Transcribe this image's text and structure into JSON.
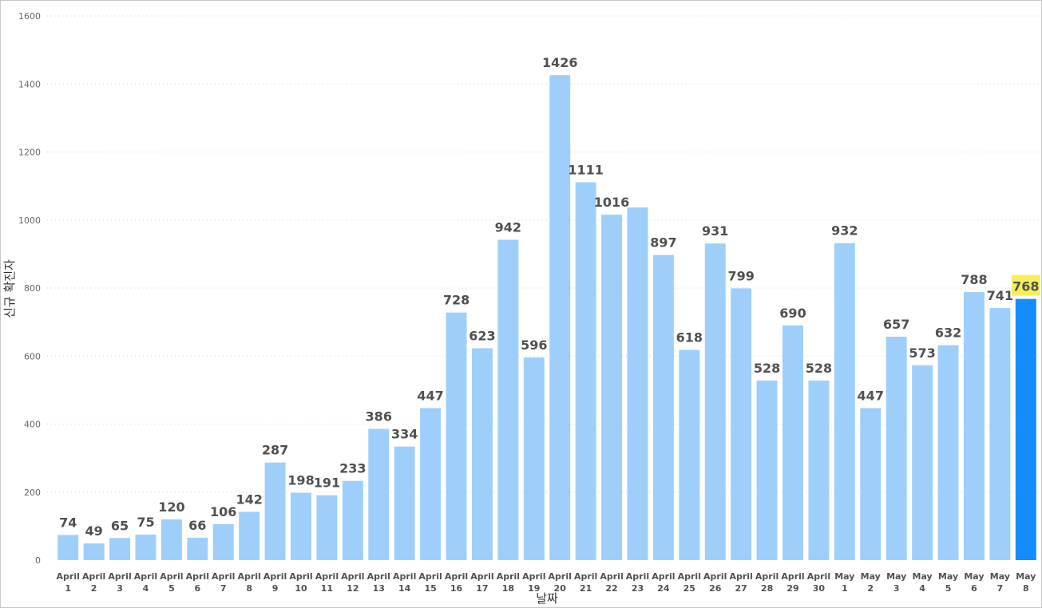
{
  "chart_data": {
    "type": "bar",
    "title": "",
    "xlabel": "날짜",
    "ylabel": "신규 확진자",
    "ylim": [
      0,
      1600
    ],
    "yticks": [
      0,
      200,
      400,
      600,
      800,
      1000,
      1200,
      1400,
      1600
    ],
    "grid": true,
    "categories": [
      [
        "April",
        "1"
      ],
      [
        "April",
        "2"
      ],
      [
        "April",
        "3"
      ],
      [
        "April",
        "4"
      ],
      [
        "April",
        "5"
      ],
      [
        "April",
        "6"
      ],
      [
        "April",
        "7"
      ],
      [
        "April",
        "8"
      ],
      [
        "April",
        "9"
      ],
      [
        "April",
        "10"
      ],
      [
        "April",
        "11"
      ],
      [
        "April",
        "12"
      ],
      [
        "April",
        "13"
      ],
      [
        "April",
        "14"
      ],
      [
        "April",
        "15"
      ],
      [
        "April",
        "16"
      ],
      [
        "April",
        "17"
      ],
      [
        "April",
        "18"
      ],
      [
        "April",
        "19"
      ],
      [
        "April",
        "20"
      ],
      [
        "April",
        "21"
      ],
      [
        "April",
        "22"
      ],
      [
        "April",
        "23"
      ],
      [
        "April",
        "24"
      ],
      [
        "April",
        "25"
      ],
      [
        "April",
        "26"
      ],
      [
        "April",
        "27"
      ],
      [
        "April",
        "28"
      ],
      [
        "April",
        "29"
      ],
      [
        "April",
        "30"
      ],
      [
        "May",
        "1"
      ],
      [
        "May",
        "2"
      ],
      [
        "May",
        "3"
      ],
      [
        "May",
        "4"
      ],
      [
        "May",
        "5"
      ],
      [
        "May",
        "6"
      ],
      [
        "May",
        "7"
      ],
      [
        "May",
        "8"
      ]
    ],
    "values": [
      74,
      49,
      65,
      75,
      120,
      66,
      106,
      142,
      287,
      198,
      191,
      233,
      386,
      334,
      447,
      728,
      623,
      942,
      596,
      1426,
      1111,
      1016,
      1037,
      897,
      618,
      931,
      799,
      528,
      690,
      528,
      932,
      447,
      657,
      573,
      632,
      788,
      741,
      768
    ],
    "labels": [
      "74",
      "49",
      "65",
      "75",
      "120",
      "66",
      "106",
      "142",
      "287",
      "198",
      "191",
      "233",
      "386",
      "334",
      "447",
      "728",
      "623",
      "942",
      "596",
      "1426",
      "1111",
      "1016",
      "",
      "897",
      "618",
      "931",
      "799",
      "528",
      "690",
      "528",
      "932",
      "447",
      "657",
      "573",
      "632",
      "788",
      "741",
      "768"
    ],
    "highlight_index": 37,
    "colors": {
      "bar": "#9ecffb",
      "highlight_bar": "#118dff",
      "highlight_label_bg": "#f6ef5a",
      "label_text": "#505050"
    }
  }
}
